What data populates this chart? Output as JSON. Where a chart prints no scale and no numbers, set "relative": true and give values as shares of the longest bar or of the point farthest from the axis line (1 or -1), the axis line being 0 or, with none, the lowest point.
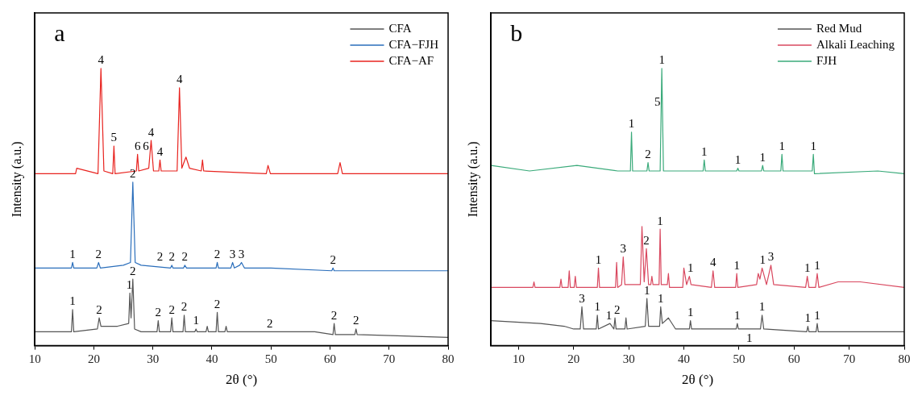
{
  "chart_data": [
    {
      "type": "line",
      "title": "a",
      "xlabel": "2θ (°)",
      "ylabel": "Intensity (a.u.)",
      "relative": true,
      "xlim": [
        10,
        80
      ],
      "xticks": [
        10,
        20,
        30,
        40,
        50,
        60,
        70,
        80
      ],
      "legend": "top right",
      "series": [
        {
          "name": "CFA",
          "color": "#555555",
          "x": [
            10,
            16.2,
            16.4,
            16.6,
            20.6,
            20.9,
            21.2,
            24,
            25.9,
            26.1,
            26.3,
            26.6,
            26.9,
            28,
            30.7,
            30.9,
            31.1,
            33.0,
            33.2,
            33.4,
            35.1,
            35.3,
            35.5,
            37.1,
            37.3,
            37.5,
            39.0,
            39.2,
            39.4,
            40.7,
            40.9,
            41.1,
            42.2,
            42.4,
            42.6,
            49.8,
            53.7,
            57.4,
            60.5,
            60.7,
            60.9,
            64.2,
            64.4,
            64.6,
            80
          ],
          "values": [
            0.05,
            0.05,
            0.13,
            0.05,
            0.06,
            0.1,
            0.07,
            0.07,
            0.08,
            0.19,
            0.1,
            0.24,
            0.06,
            0.05,
            0.05,
            0.09,
            0.05,
            0.05,
            0.1,
            0.05,
            0.05,
            0.11,
            0.05,
            0.05,
            0.06,
            0.05,
            0.05,
            0.07,
            0.05,
            0.05,
            0.12,
            0.05,
            0.05,
            0.07,
            0.05,
            0.05,
            0.05,
            0.05,
            0.04,
            0.08,
            0.04,
            0.04,
            0.06,
            0.04,
            0.03
          ]
        },
        {
          "name": "CFA−FJH",
          "color": "#2a6ebb",
          "x": [
            10,
            16.2,
            16.4,
            16.6,
            20.5,
            20.8,
            21.1,
            25,
            26.2,
            26.6,
            27.0,
            28,
            33.0,
            33.2,
            33.4,
            35.2,
            35.4,
            35.7,
            40.7,
            40.9,
            41.1,
            43.2,
            43.5,
            43.8,
            44.7,
            45.0,
            45.5,
            50,
            60.3,
            60.5,
            60.7,
            70,
            80
          ],
          "values": [
            0.28,
            0.28,
            0.3,
            0.28,
            0.28,
            0.3,
            0.28,
            0.29,
            0.3,
            0.59,
            0.3,
            0.29,
            0.28,
            0.29,
            0.28,
            0.28,
            0.29,
            0.28,
            0.28,
            0.3,
            0.28,
            0.28,
            0.3,
            0.28,
            0.29,
            0.3,
            0.28,
            0.28,
            0.27,
            0.28,
            0.27,
            0.27,
            0.27
          ]
        },
        {
          "name": "CFA−AF",
          "color": "#e8231f",
          "x": [
            10,
            15,
            16.9,
            17.1,
            20.7,
            21.2,
            21.7,
            23.2,
            23.4,
            23.6,
            27.2,
            27.4,
            27.6,
            29.3,
            29.7,
            30.1,
            31.0,
            31.2,
            31.4,
            34.1,
            34.5,
            34.9,
            35.6,
            36.2,
            38.2,
            38.4,
            38.6,
            49.2,
            49.5,
            49.9,
            61.3,
            61.7,
            62.1,
            70,
            80
          ],
          "values": [
            0.62,
            0.62,
            0.62,
            0.64,
            0.62,
            1.0,
            0.63,
            0.62,
            0.72,
            0.62,
            0.63,
            0.69,
            0.63,
            0.64,
            0.74,
            0.63,
            0.63,
            0.67,
            0.63,
            0.63,
            0.93,
            0.64,
            0.68,
            0.64,
            0.63,
            0.67,
            0.63,
            0.62,
            0.65,
            0.62,
            0.62,
            0.66,
            0.62,
            0.62,
            0.62
          ]
        }
      ],
      "annotations": [
        {
          "text": "4",
          "x": 21.2,
          "y": 1.0
        },
        {
          "text": "5",
          "x": 23.4,
          "y": 0.72
        },
        {
          "text": "6",
          "x": 27.4,
          "y": 0.69
        },
        {
          "text": "6",
          "x": 28.8,
          "y": 0.69
        },
        {
          "text": "4",
          "x": 29.7,
          "y": 0.74
        },
        {
          "text": "4",
          "x": 31.2,
          "y": 0.67
        },
        {
          "text": "4",
          "x": 34.5,
          "y": 0.93
        },
        {
          "text": "1",
          "x": 16.4,
          "y": 0.3
        },
        {
          "text": "2",
          "x": 20.8,
          "y": 0.3
        },
        {
          "text": "2",
          "x": 26.6,
          "y": 0.59
        },
        {
          "text": "2",
          "x": 31.2,
          "y": 0.29
        },
        {
          "text": "2",
          "x": 33.2,
          "y": 0.29
        },
        {
          "text": "2",
          "x": 35.4,
          "y": 0.29
        },
        {
          "text": "2",
          "x": 40.9,
          "y": 0.3
        },
        {
          "text": "3",
          "x": 43.5,
          "y": 0.3
        },
        {
          "text": "3",
          "x": 45.0,
          "y": 0.3
        },
        {
          "text": "2",
          "x": 60.5,
          "y": 0.28
        },
        {
          "text": "1",
          "x": 16.4,
          "y": 0.13
        },
        {
          "text": "2",
          "x": 20.9,
          "y": 0.1
        },
        {
          "text": "1",
          "x": 26.0,
          "y": 0.19
        },
        {
          "text": "2",
          "x": 26.6,
          "y": 0.24
        },
        {
          "text": "2",
          "x": 30.9,
          "y": 0.09
        },
        {
          "text": "2",
          "x": 33.2,
          "y": 0.1
        },
        {
          "text": "2",
          "x": 35.3,
          "y": 0.11
        },
        {
          "text": "1",
          "x": 37.3,
          "y": 0.06
        },
        {
          "text": "2",
          "x": 40.9,
          "y": 0.12
        },
        {
          "text": "2",
          "x": 49.8,
          "y": 0.05
        },
        {
          "text": "2",
          "x": 60.7,
          "y": 0.08
        },
        {
          "text": "2",
          "x": 64.4,
          "y": 0.06
        }
      ]
    },
    {
      "type": "line",
      "title": "b",
      "xlabel": "2θ (°)",
      "ylabel": "Intensity (a.u.)",
      "relative": true,
      "xlim": [
        5,
        80
      ],
      "xticks": [
        10,
        20,
        30,
        40,
        50,
        60,
        70,
        80
      ],
      "legend": "top right",
      "series": [
        {
          "name": "Red Mud",
          "color": "#555555",
          "x": [
            5,
            14.0,
            18.3,
            20,
            21.2,
            21.5,
            21.8,
            24.1,
            24.3,
            24.5,
            26.6,
            27.3,
            27.5,
            27.7,
            29.3,
            29.5,
            29.7,
            33.0,
            33.3,
            33.6,
            35.6,
            35.8,
            36.1,
            37.2,
            38.5,
            41.0,
            41.2,
            41.4,
            49.5,
            49.7,
            49.9,
            53.9,
            54.2,
            54.5,
            62.3,
            62.5,
            62.7,
            64.0,
            64.2,
            64.4,
            80
          ],
          "values": [
            0.09,
            0.08,
            0.07,
            0.06,
            0.06,
            0.14,
            0.06,
            0.06,
            0.11,
            0.06,
            0.08,
            0.06,
            0.1,
            0.06,
            0.06,
            0.1,
            0.06,
            0.07,
            0.17,
            0.07,
            0.07,
            0.14,
            0.08,
            0.1,
            0.06,
            0.06,
            0.09,
            0.06,
            0.06,
            0.08,
            0.06,
            0.06,
            0.11,
            0.06,
            0.05,
            0.07,
            0.05,
            0.05,
            0.08,
            0.05,
            0.05
          ]
        },
        {
          "name": "Alkali Leaching",
          "color": "#d9485f",
          "x": [
            5,
            12.6,
            12.8,
            13.0,
            17.5,
            17.7,
            17.9,
            19.0,
            19.2,
            19.4,
            20.1,
            20.3,
            20.5,
            24.3,
            24.5,
            24.7,
            27.6,
            27.8,
            28.0,
            28.7,
            29.0,
            29.3,
            32.1,
            32.4,
            32.8,
            33.2,
            33.6,
            34.0,
            34.2,
            34.4,
            35.5,
            35.7,
            35.9,
            37.0,
            37.2,
            37.4,
            39.8,
            40.0,
            40.5,
            41.0,
            41.3,
            45.0,
            45.3,
            45.6,
            49.4,
            49.6,
            49.8,
            53.2,
            53.5,
            53.8,
            54.2,
            55.0,
            55.8,
            56.3,
            62.1,
            62.4,
            62.7,
            63.9,
            64.2,
            64.5,
            68.0,
            72.0,
            80
          ],
          "values": [
            0.21,
            0.21,
            0.23,
            0.21,
            0.21,
            0.24,
            0.21,
            0.21,
            0.27,
            0.21,
            0.21,
            0.25,
            0.21,
            0.21,
            0.28,
            0.21,
            0.21,
            0.3,
            0.21,
            0.22,
            0.32,
            0.22,
            0.22,
            0.43,
            0.23,
            0.35,
            0.22,
            0.22,
            0.25,
            0.22,
            0.22,
            0.42,
            0.22,
            0.22,
            0.26,
            0.21,
            0.21,
            0.28,
            0.22,
            0.25,
            0.22,
            0.21,
            0.27,
            0.21,
            0.21,
            0.26,
            0.21,
            0.22,
            0.26,
            0.24,
            0.28,
            0.22,
            0.29,
            0.22,
            0.21,
            0.25,
            0.21,
            0.21,
            0.26,
            0.21,
            0.23,
            0.23,
            0.21
          ]
        },
        {
          "name": "FJH",
          "color": "#3aaa7a",
          "x": [
            5,
            12,
            20.6,
            28,
            30.3,
            30.5,
            30.7,
            33.3,
            33.5,
            33.7,
            35.7,
            36.0,
            36.3,
            43.5,
            43.7,
            43.9,
            49.6,
            49.8,
            50.0,
            54.1,
            54.3,
            54.5,
            57.6,
            57.8,
            58.0,
            63.3,
            63.5,
            63.7,
            75.2,
            80
          ],
          "values": [
            0.65,
            0.63,
            0.65,
            0.63,
            0.63,
            0.77,
            0.63,
            0.63,
            0.66,
            0.63,
            0.63,
            1.0,
            0.63,
            0.63,
            0.67,
            0.63,
            0.63,
            0.64,
            0.63,
            0.63,
            0.65,
            0.63,
            0.63,
            0.69,
            0.63,
            0.63,
            0.69,
            0.62,
            0.63,
            0.62
          ]
        }
      ],
      "annotations": [
        {
          "text": "1",
          "x": 30.5,
          "y": 0.77
        },
        {
          "text": "2",
          "x": 33.5,
          "y": 0.66
        },
        {
          "text": "5",
          "x": 35.2,
          "y": 0.85
        },
        {
          "text": "1",
          "x": 36.0,
          "y": 1.0
        },
        {
          "text": "1",
          "x": 43.7,
          "y": 0.67
        },
        {
          "text": "1",
          "x": 49.8,
          "y": 0.64
        },
        {
          "text": "1",
          "x": 54.3,
          "y": 0.65
        },
        {
          "text": "1",
          "x": 57.8,
          "y": 0.69
        },
        {
          "text": "1",
          "x": 63.5,
          "y": 0.69
        },
        {
          "text": "1",
          "x": 24.5,
          "y": 0.28
        },
        {
          "text": "3",
          "x": 29.0,
          "y": 0.32
        },
        {
          "text": "2",
          "x": 33.2,
          "y": 0.35
        },
        {
          "text": "1",
          "x": 35.7,
          "y": 0.42
        },
        {
          "text": "1",
          "x": 41.2,
          "y": 0.25
        },
        {
          "text": "4",
          "x": 45.3,
          "y": 0.27
        },
        {
          "text": "1",
          "x": 49.6,
          "y": 0.26
        },
        {
          "text": "1",
          "x": 54.3,
          "y": 0.28
        },
        {
          "text": "3",
          "x": 55.8,
          "y": 0.29
        },
        {
          "text": "1",
          "x": 62.4,
          "y": 0.25
        },
        {
          "text": "1",
          "x": 64.2,
          "y": 0.26
        },
        {
          "text": "3",
          "x": 21.5,
          "y": 0.14
        },
        {
          "text": "1",
          "x": 24.3,
          "y": 0.11
        },
        {
          "text": "1",
          "x": 26.4,
          "y": 0.08
        },
        {
          "text": "2",
          "x": 27.9,
          "y": 0.1
        },
        {
          "text": "1",
          "x": 33.3,
          "y": 0.17
        },
        {
          "text": "1",
          "x": 35.8,
          "y": 0.14
        },
        {
          "text": "1",
          "x": 41.2,
          "y": 0.09
        },
        {
          "text": "1",
          "x": 49.7,
          "y": 0.08
        },
        {
          "text": "1",
          "x": 54.2,
          "y": 0.11
        },
        {
          "text": "1",
          "x": 62.5,
          "y": 0.07
        },
        {
          "text": "1",
          "x": 64.2,
          "y": 0.08
        },
        "1"
      ]
    }
  ]
}
